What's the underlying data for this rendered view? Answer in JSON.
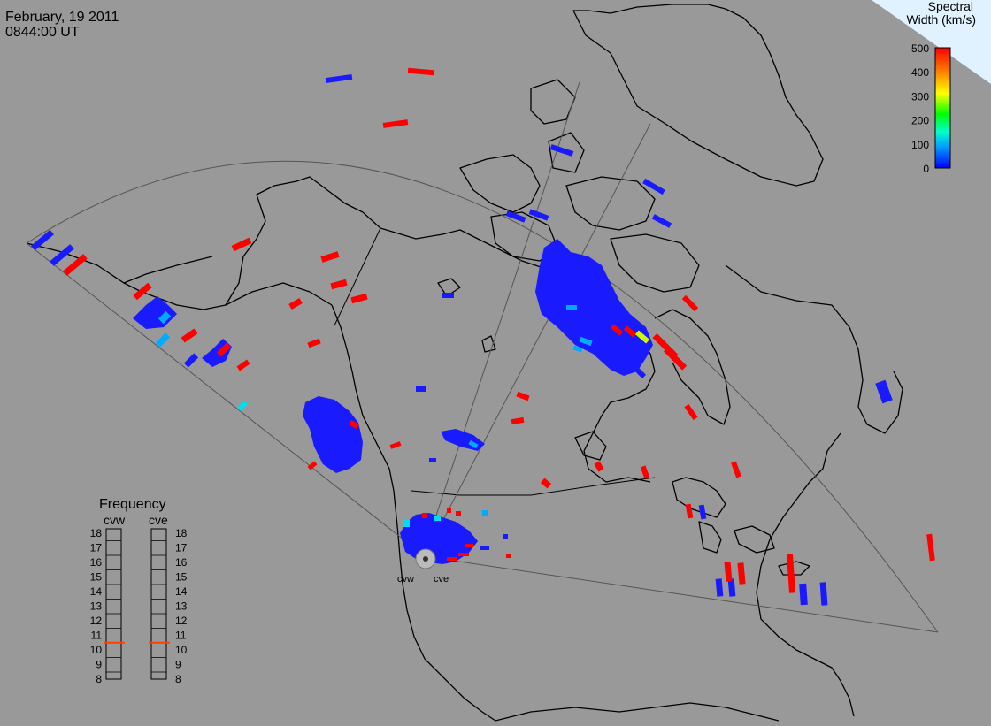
{
  "header": {
    "date": "February, 19 2011",
    "time": "0844:00 UT"
  },
  "colorbar": {
    "title_line1": "Spectral",
    "title_line2": "Width (km/s)",
    "ticks": [
      "500",
      "400",
      "300",
      "200",
      "100",
      "0"
    ],
    "stops": [
      "#0000ff",
      "#00a0ff",
      "#00ffcc",
      "#00ff00",
      "#ffff00",
      "#ff8000",
      "#ff0000"
    ]
  },
  "frequency": {
    "title": "Frequency",
    "left_label": "cvw",
    "right_label": "cve",
    "ticks": [
      "18",
      "17",
      "16",
      "15",
      "14",
      "13",
      "12",
      "11",
      "10",
      "9",
      "8"
    ],
    "cvw_mhz": 10.5,
    "cve_mhz": 10.5,
    "marker_color": "#ff4000"
  },
  "radars": [
    {
      "name": "cvw"
    },
    {
      "name": "cve"
    }
  ],
  "colors": {
    "background": "#999999",
    "coast": "#000000",
    "fov": "#555555",
    "corner": "#e0f2ff"
  }
}
